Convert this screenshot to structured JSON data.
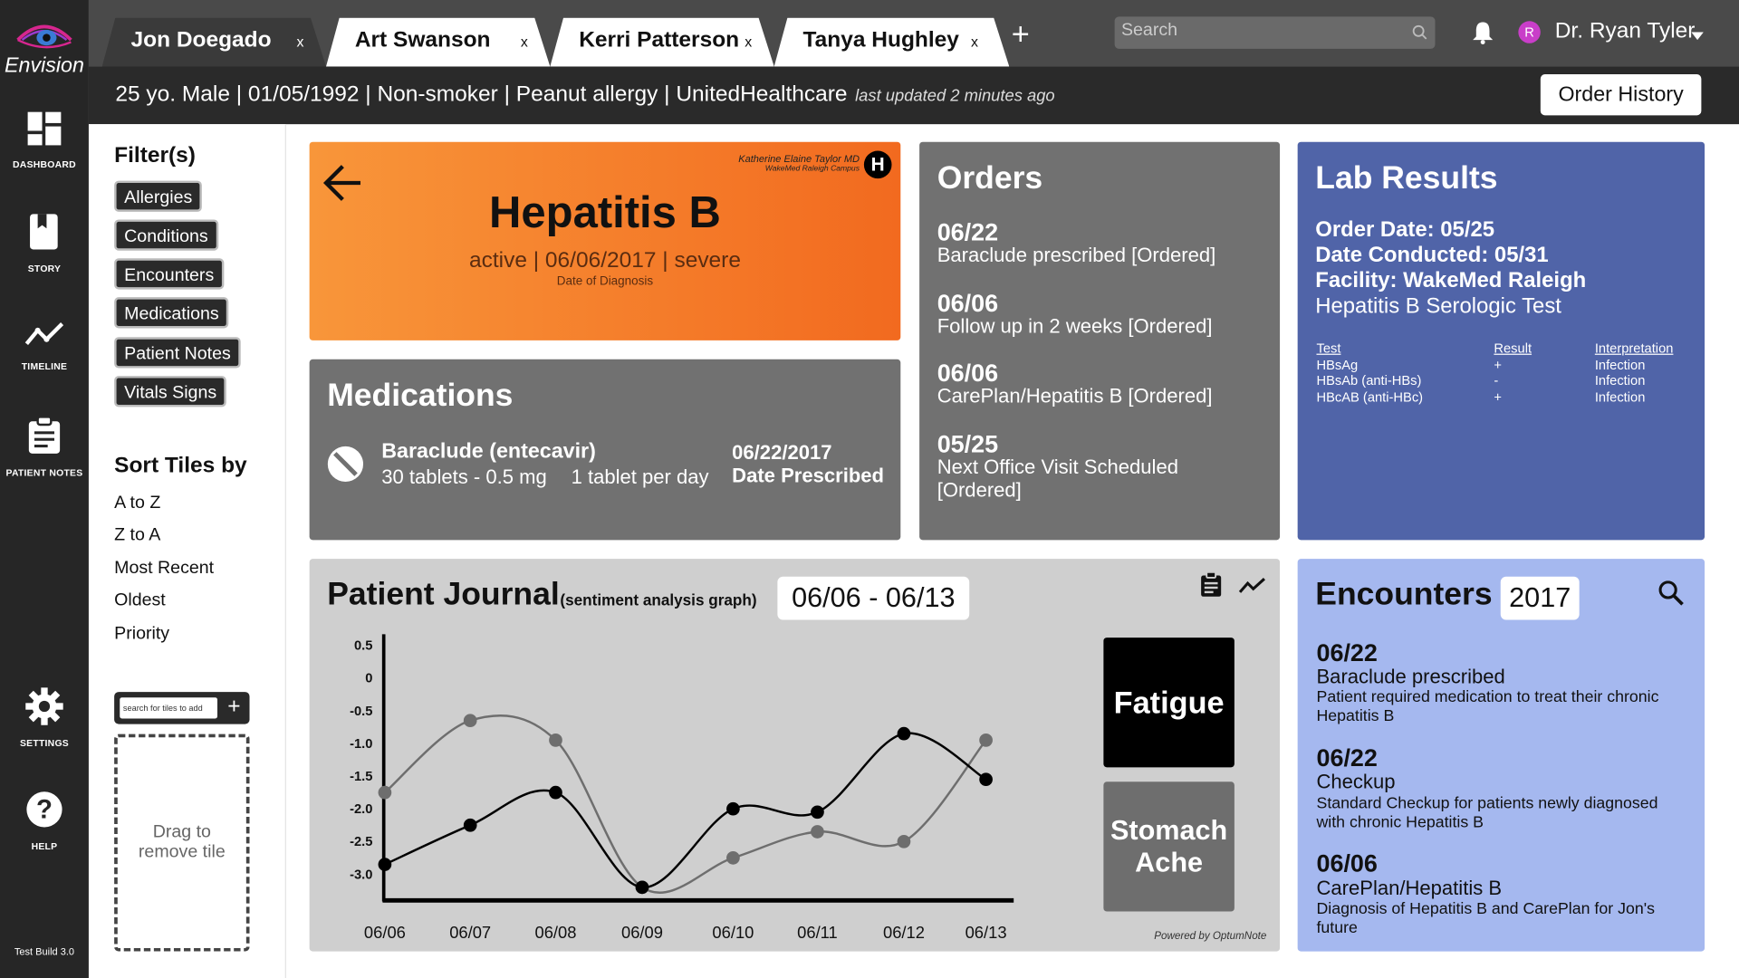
{
  "app": {
    "name": "Envision",
    "build": "Test Build 3.0"
  },
  "sidebar": {
    "items": [
      {
        "label": "DASHBOARD",
        "icon": "dashboard-icon"
      },
      {
        "label": "STORY",
        "icon": "book-icon"
      },
      {
        "label": "TIMELINE",
        "icon": "timeline-icon"
      },
      {
        "label": "PATIENT NOTES",
        "icon": "clipboard-icon"
      },
      {
        "label": "SETTINGS",
        "icon": "gear-icon"
      },
      {
        "label": "HELP",
        "icon": "help-icon"
      }
    ]
  },
  "tabs": [
    {
      "name": "Jon Doegado",
      "close": "x"
    },
    {
      "name": "Art Swanson",
      "close": "x"
    },
    {
      "name": "Kerri Patterson",
      "close": "x"
    },
    {
      "name": "Tanya Hughley",
      "close": "x"
    }
  ],
  "new_tab": "+",
  "search": {
    "placeholder": "Search"
  },
  "user": {
    "avatar": "R",
    "name": "Dr. Ryan Tyler"
  },
  "patient_info": {
    "summary": "25 yo. Male | 01/05/1992 | Non-smoker | Peanut allergy | UnitedHealthcare",
    "updated": "last updated 2 minutes ago"
  },
  "order_history_label": "Order History",
  "filters": {
    "title": "Filter(s)",
    "chips": [
      "Allergies",
      "Conditions",
      "Encounters",
      "Medications",
      "Patient Notes",
      "Vitals Signs"
    ],
    "sort_title": "Sort Tiles by",
    "sort_options": [
      "A to Z",
      "Z to A",
      "Most Recent",
      "Oldest",
      "Priority"
    ],
    "add_placeholder": "search for tiles to add",
    "add_button": "+",
    "drop_zone": "Drag to remove tile"
  },
  "diagnosis": {
    "doctor": "Katherine Elaine Taylor MD",
    "facility": "WakeMed Raleigh Campus",
    "badge": "H",
    "name": "Hepatitis B",
    "details": "active | 06/06/2017 | severe",
    "caption": "Date of Diagnosis"
  },
  "medications": {
    "title": "Medications",
    "drug": "Baraclude (entecavir)",
    "qty": "30 tablets - 0.5 mg",
    "dose": "1 tablet per day",
    "date": "06/22/2017",
    "date_label": "Date Prescribed"
  },
  "orders": {
    "title": "Orders",
    "items": [
      {
        "date": "06/22",
        "text": "Baraclude prescribed [Ordered]"
      },
      {
        "date": "06/06",
        "text": "Follow up in 2 weeks [Ordered]"
      },
      {
        "date": "06/06",
        "text": "CarePlan/Hepatitis B [Ordered]"
      },
      {
        "date": "05/25",
        "text": "Next Office Visit Scheduled [Ordered]"
      }
    ]
  },
  "labs": {
    "title": "Lab Results",
    "order_date": "Order Date: 05/25",
    "date_conducted": "Date Conducted: 05/31",
    "facility": "Facility: WakeMed Raleigh",
    "test_name": "Hepatitis B Serologic Test",
    "headers": [
      "Test",
      "Result",
      "Interpretation"
    ],
    "rows": [
      [
        "HBsAg",
        "+",
        "Infection"
      ],
      [
        "HBsAb (anti-HBs)",
        "-",
        "Infection"
      ],
      [
        "HBcAB (anti-HBc)",
        "+",
        "Infection"
      ]
    ]
  },
  "journal": {
    "title": "Patient Journal",
    "subtitle": "(sentiment analysis graph)",
    "range": "06/06 - 06/13",
    "symptoms": [
      "Fatigue",
      "Stomach Ache"
    ],
    "footer": "Powered by OptumNote"
  },
  "chart_data": {
    "type": "line",
    "x": [
      "06/06",
      "06/07",
      "06/08",
      "06/09",
      "06/10",
      "06/11",
      "06/12",
      "06/13"
    ],
    "y_ticks": [
      "0.5",
      "0",
      "-0.5",
      "-1.0",
      "-1.5",
      "-2.0",
      "-2.5",
      "-3.0"
    ],
    "ylim": [
      -3.4,
      0.5
    ],
    "series": [
      {
        "name": "Fatigue",
        "color": "#000000",
        "values": [
          -2.85,
          -2.25,
          -1.75,
          -3.2,
          -2.0,
          -2.05,
          -0.85,
          -1.55
        ]
      },
      {
        "name": "Stomach Ache",
        "color": "#6e6e6e",
        "values": [
          -1.75,
          -0.65,
          -0.95,
          -3.2,
          -2.75,
          -2.35,
          -2.5,
          -0.95
        ]
      }
    ]
  },
  "encounters": {
    "title": "Encounters",
    "year": "2017",
    "items": [
      {
        "date": "06/22",
        "title": "Baraclude prescribed",
        "desc": "Patient required medication to treat their chronic Hepatitis B"
      },
      {
        "date": "06/22",
        "title": "Checkup",
        "desc": "Standard Checkup for patients newly diagnosed with chronic Hepatitis B"
      },
      {
        "date": "06/06",
        "title": "CarePlan/Hepatitis B",
        "desc": "Diagnosis of Hepatitis B and CarePlan for Jon's future"
      }
    ]
  }
}
